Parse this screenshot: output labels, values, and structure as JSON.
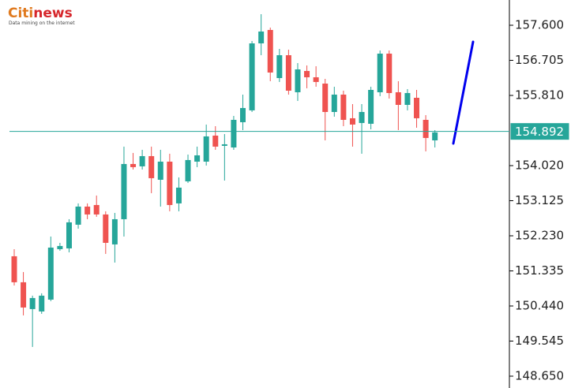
{
  "logo": {
    "name_part1": "Citi",
    "name_part2": "news",
    "tagline": "Data mining on the internet"
  },
  "chart_data": {
    "type": "candlestick",
    "open": [
      151.708,
      151.045,
      150.361,
      150.3,
      150.602,
      151.889,
      151.909,
      152.513,
      152.975,
      153.015,
      152.774,
      152.01,
      152.653,
      154.061,
      154.001,
      154.262,
      153.659,
      154.121,
      153.056,
      153.619,
      154.121,
      154.121,
      154.785,
      154.524,
      154.483,
      155.127,
      155.429,
      157.138,
      157.48,
      156.253,
      156.836,
      155.891,
      156.434,
      156.273,
      156.112,
      155.388,
      155.831,
      155.228,
      155.107,
      155.087,
      155.891,
      156.876,
      155.891,
      155.569,
      155.75,
      155.187,
      154.664
    ],
    "high": [
      151.889,
      151.306,
      150.703,
      150.763,
      152.211,
      152.05,
      152.653,
      153.056,
      153.056,
      153.257,
      152.855,
      152.814,
      154.504,
      154.343,
      154.423,
      154.504,
      154.423,
      154.323,
      153.719,
      154.302,
      154.504,
      155.067,
      155.026,
      154.825,
      155.288,
      155.831,
      157.198,
      157.882,
      157.54,
      156.997,
      156.977,
      156.635,
      156.575,
      156.555,
      156.233,
      156.032,
      155.931,
      155.589,
      155.589,
      156.032,
      156.957,
      156.957,
      156.173,
      155.972,
      155.951,
      155.308,
      154.926
    ],
    "low": [
      150.964,
      150.2,
      149.395,
      150.24,
      150.562,
      151.849,
      151.808,
      152.412,
      152.653,
      152.714,
      151.768,
      151.547,
      152.211,
      153.92,
      153.92,
      153.317,
      152.975,
      152.855,
      152.855,
      153.579,
      153.981,
      154.021,
      154.423,
      153.639,
      154.423,
      154.926,
      155.388,
      156.836,
      156.173,
      156.153,
      155.831,
      155.67,
      155.992,
      156.032,
      154.664,
      155.268,
      155.026,
      154.504,
      154.323,
      154.946,
      155.791,
      155.73,
      154.926,
      155.429,
      154.986,
      154.383,
      154.483
    ],
    "close": [
      151.045,
      150.401,
      150.643,
      150.703,
      151.929,
      151.97,
      152.573,
      152.975,
      152.774,
      152.774,
      152.05,
      152.653,
      154.061,
      153.981,
      154.262,
      153.699,
      154.121,
      153.015,
      153.458,
      154.162,
      154.282,
      154.765,
      154.504,
      154.564,
      155.187,
      155.489,
      157.138,
      157.44,
      156.394,
      156.836,
      155.931,
      156.474,
      156.273,
      156.153,
      155.388,
      155.831,
      155.187,
      155.067,
      155.388,
      155.951,
      156.876,
      155.871,
      155.569,
      155.871,
      155.228,
      154.725,
      154.866
    ],
    "up_color": "#26a69a",
    "down_color": "#ef5350",
    "ylim": [
      148.348,
      158.244
    ],
    "yticks": [
      {
        "value": 157.6,
        "label": "157.600"
      },
      156.705,
      {
        "value": 155.81,
        "label": "155.810"
      },
      {
        "value": 154.02,
        "label": "154.020"
      },
      153.125,
      {
        "value": 152.23,
        "label": "152.230"
      },
      151.335,
      {
        "value": 150.44,
        "label": "150.440"
      },
      149.545,
      {
        "value": 148.65,
        "label": "148.650"
      }
    ],
    "last_price": 154.892,
    "last_price_color": "#26a69a"
  }
}
